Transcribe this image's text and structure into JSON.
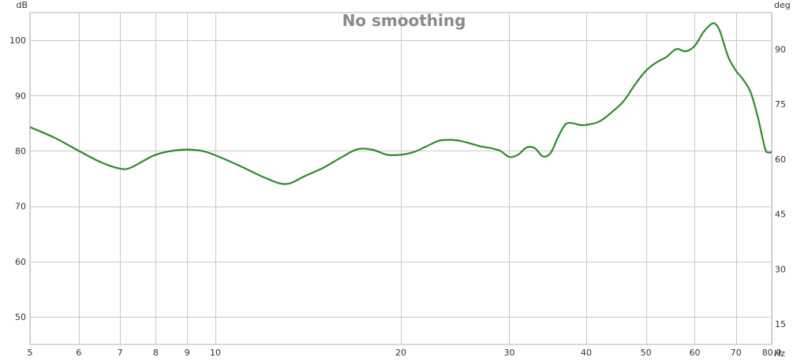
{
  "chart_data": {
    "type": "line",
    "title": "No smoothing",
    "xlabel": "",
    "ylabel": "",
    "x_unit": "Hz",
    "y_unit_left": "dB",
    "y_unit_right": "deg",
    "x_scale": "log",
    "xlim": [
      5,
      80
    ],
    "ylim": [
      45,
      105
    ],
    "y_right_lim": [
      9.4,
      100
    ],
    "x_ticks": [
      5,
      6,
      7,
      8,
      9,
      10,
      20,
      30,
      40,
      50,
      60,
      70,
      80
    ],
    "x_tick_labels": [
      "5",
      "6",
      "7",
      "8",
      "9",
      "10",
      "20",
      "30",
      "40",
      "50",
      "60",
      "70",
      "80.0"
    ],
    "y_ticks": [
      50,
      60,
      70,
      80,
      90,
      100
    ],
    "y_tick_labels": [
      "50",
      "60",
      "70",
      "80",
      "90",
      "100"
    ],
    "y_right_ticks": [
      15,
      30,
      45,
      60,
      75,
      90
    ],
    "y_right_tick_labels": [
      "15",
      "30",
      "45",
      "60",
      "75",
      "90"
    ],
    "grid": true,
    "series": [
      {
        "color": "#2e8b2e",
        "x": [
          5,
          5.5,
          6,
          6.5,
          7,
          7.3,
          8,
          8.8,
          9.5,
          10,
          11,
          12,
          13,
          14,
          15,
          16,
          17,
          18,
          19,
          20,
          21,
          22,
          23,
          24,
          25,
          26,
          27,
          28,
          29,
          30,
          31,
          32,
          33,
          34,
          35,
          36,
          37,
          38,
          39,
          40,
          42,
          44,
          46,
          48,
          50,
          52,
          54,
          56,
          58,
          60,
          62,
          64,
          65,
          66,
          68,
          70,
          72,
          74,
          76,
          78,
          79,
          80
        ],
        "y": [
          84.3,
          82.3,
          80.0,
          78.0,
          76.8,
          77.0,
          79.3,
          80.2,
          80.0,
          79.2,
          77.2,
          75.2,
          74.0,
          75.5,
          77.0,
          78.8,
          80.3,
          80.2,
          79.3,
          79.3,
          79.8,
          80.8,
          81.8,
          82.0,
          81.8,
          81.3,
          80.8,
          80.5,
          80.0,
          78.9,
          79.3,
          80.6,
          80.5,
          79.0,
          79.6,
          82.5,
          84.8,
          85.0,
          84.7,
          84.7,
          85.3,
          87.0,
          89.0,
          92.0,
          94.5,
          96.0,
          97.0,
          98.4,
          98.0,
          99.0,
          101.5,
          103.0,
          102.8,
          101.5,
          97.0,
          94.5,
          92.8,
          90.5,
          86.0,
          80.5,
          79.7,
          79.8
        ]
      }
    ]
  }
}
